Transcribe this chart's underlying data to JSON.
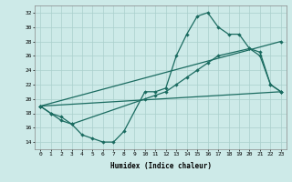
{
  "xlabel": "Humidex (Indice chaleur)",
  "xlim": [
    -0.5,
    23.5
  ],
  "ylim": [
    13,
    33
  ],
  "yticks": [
    14,
    16,
    18,
    20,
    22,
    24,
    26,
    28,
    30,
    32
  ],
  "xticks": [
    0,
    1,
    2,
    3,
    4,
    5,
    6,
    7,
    8,
    9,
    10,
    11,
    12,
    13,
    14,
    15,
    16,
    17,
    18,
    19,
    20,
    21,
    22,
    23
  ],
  "bg_color": "#cdeae8",
  "grid_color": "#aacfcc",
  "line_color": "#1a6b60",
  "line1_x": [
    0,
    1,
    2,
    3,
    4,
    5,
    6,
    7,
    8,
    10,
    11,
    12,
    13,
    14,
    15,
    16,
    17,
    18,
    19,
    20,
    21,
    22,
    23
  ],
  "line1_y": [
    19,
    18,
    17.5,
    16.5,
    15,
    14.5,
    14,
    14,
    15.5,
    21,
    21,
    21.5,
    26,
    29,
    31.5,
    32,
    30,
    29,
    29,
    27,
    26.5,
    22,
    21
  ],
  "line2_x": [
    0,
    1,
    2,
    3,
    10,
    11,
    12,
    13,
    14,
    15,
    16,
    17,
    20,
    21,
    22,
    23
  ],
  "line2_y": [
    19,
    18,
    17,
    16.5,
    20,
    20.5,
    21,
    22,
    23,
    24,
    25,
    26,
    27,
    26,
    22,
    21
  ],
  "line3_x": [
    0,
    23
  ],
  "line3_y": [
    19,
    21
  ],
  "line4_x": [
    0,
    23
  ],
  "line4_y": [
    19,
    28
  ]
}
